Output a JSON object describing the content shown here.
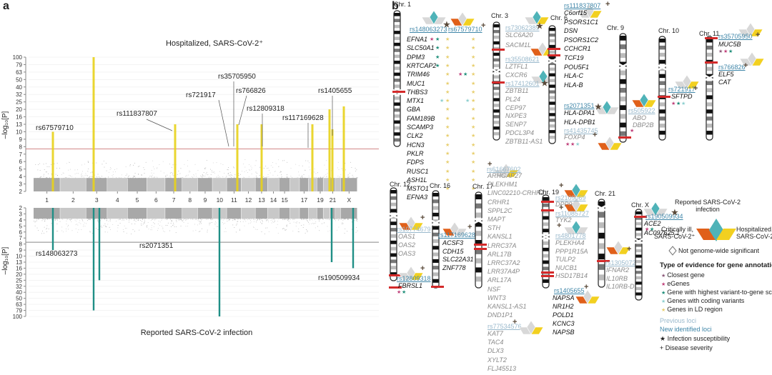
{
  "panel_a_letter": "a",
  "panel_b_letter": "b",
  "chart_data": [
    {
      "type": "scatter",
      "subtype": "miami_manhattan_top",
      "title": "Hospitalized, SARS-CoV-2⁺",
      "ylabel": "–log₁₀[P]",
      "yticks": [
        "2",
        "3",
        "4",
        "5",
        "6",
        "7",
        "8",
        "9",
        "10",
        "13",
        "16",
        "20",
        "25",
        "32",
        "40",
        "50",
        "63",
        "79",
        "100"
      ],
      "ylim": [
        2,
        100
      ],
      "significance_line": 7.7,
      "x_chromosomes": [
        "1",
        "2",
        "3",
        "4",
        "5",
        "6",
        "7",
        "8",
        "9",
        "10",
        "11",
        "12",
        "13",
        "14",
        "15",
        "17",
        "19",
        "21",
        "X"
      ],
      "highlight_color": "#e8d21a",
      "annotations": [
        {
          "label": "rs67579710",
          "chr": "1",
          "peak": 10
        },
        {
          "label": "rs111837807",
          "chr": "6",
          "peak": 13
        },
        {
          "label": "rs721917",
          "chr": "10",
          "peak": 8
        },
        {
          "label": "rs35705950",
          "chr": "11",
          "peak": 8
        },
        {
          "label": "rs766826",
          "chr": "11",
          "peak": 12
        },
        {
          "label": "rs12809318",
          "chr": "12",
          "peak": 13
        },
        {
          "label": "rs117169628",
          "chr": "17",
          "peak": 13
        },
        {
          "label": "rs1405655",
          "chr": "19",
          "peak": 11
        },
        {
          "label": "",
          "chr": "3",
          "peak": 100
        },
        {
          "label": "",
          "chr": "19",
          "peak": 20
        },
        {
          "label": "",
          "chr": "21",
          "peak": 20
        }
      ]
    },
    {
      "type": "scatter",
      "subtype": "miami_manhattan_bottom",
      "title": "Reported SARS-CoV-2 infection",
      "ylabel": "–log₁₀[P]",
      "yticks": [
        "2",
        "3",
        "4",
        "5",
        "6",
        "7",
        "8",
        "9",
        "10",
        "13",
        "16",
        "20",
        "25",
        "32",
        "40",
        "50",
        "63",
        "79",
        "100"
      ],
      "ylim": [
        2,
        100
      ],
      "significance_line": 7.7,
      "highlight_color": "#1f8f86",
      "annotations": [
        {
          "label": "rs148063273",
          "chr": "1",
          "peak": 9
        },
        {
          "label": "",
          "chr": "3a",
          "peak": 79
        },
        {
          "label": "",
          "chr": "3b",
          "peak": 25
        },
        {
          "label": "rs2071351",
          "chr": "6",
          "peak": 7
        },
        {
          "label": "",
          "chr": "9",
          "peak": 100
        },
        {
          "label": "",
          "chr": "19",
          "peak": 13
        },
        {
          "label": "rs190509934",
          "chr": "X",
          "peak": 16
        }
      ]
    }
  ],
  "chromosomes": {
    "chr1": {
      "label": "Chr. 1",
      "rs": [
        {
          "id": "rs148063273",
          "status": "new",
          "mark": "★"
        },
        {
          "id": "rs67579710",
          "status": "new",
          "mark": "+"
        }
      ],
      "genes": [
        "EFNA1",
        "SLC50A1",
        "DPM3",
        "KRTCAP2",
        "TRIM46",
        "MUC1",
        "THBS3",
        "MTX1",
        "GBA",
        "FAM189B",
        "SCAMP3",
        "CLK2",
        "HCN3",
        "PKLR",
        "FDPS",
        "RUSC1",
        "ASH1L",
        "MSTO1",
        "EFNA3"
      ]
    },
    "chr3": {
      "label": "Chr. 3",
      "rs": [
        {
          "id": "rs73062389",
          "status": "prev",
          "mark": "★"
        },
        {
          "id": "rs35508621",
          "status": "prev",
          "mark": "+"
        },
        {
          "id": "rs17412601",
          "status": "prev",
          "mark": "★"
        }
      ],
      "genes": [
        "SLC6A20",
        "SACM1L",
        "LZTFL1",
        "CXCR6",
        "ZBTB11",
        "PL24",
        "CEP97",
        "NXPE3",
        "SENP7",
        "PDCL3P4",
        "ZBTB11-AS1"
      ]
    },
    "chr6": {
      "label": "Chr. 6",
      "rs": [
        {
          "id": "rs111837807",
          "status": "new",
          "mark": "+"
        },
        {
          "id": "rs2071351",
          "status": "new",
          "mark": "★"
        },
        {
          "id": "rs41435745",
          "status": "prev",
          "mark": "+"
        }
      ],
      "genes": [
        "C6orf15",
        "PSORS1C1",
        "DSN",
        "PSORS1C2",
        "CCHCR1",
        "TCF19",
        "POU5F1",
        "HLA-C",
        "HLA-B",
        "HLA-DPA1",
        "HLA-DPB1",
        "FOXP4"
      ]
    },
    "chr9": {
      "label": "Chr. 9",
      "rs": [
        {
          "id": "rs505922",
          "status": "prev",
          "mark": "★"
        }
      ],
      "genes": [
        "ABO",
        "DBP2B"
      ]
    },
    "chr10": {
      "label": "Chr. 10",
      "rs": [
        {
          "id": "rs721917",
          "status": "new",
          "mark": "+"
        }
      ],
      "genes": [
        "SFTPD"
      ]
    },
    "chr11": {
      "label": "Chr. 11",
      "rs": [
        {
          "id": "rs35705950",
          "status": "new",
          "mark": "+"
        },
        {
          "id": "rs766826",
          "status": "new",
          "mark": "+"
        }
      ],
      "genes": [
        "MUC5B",
        "ELF5",
        "CAT"
      ]
    },
    "chr12": {
      "label": "Chr. 12",
      "rs": [
        {
          "id": "rs10774679",
          "status": "prev",
          "mark": "+"
        },
        {
          "id": "rs12809318",
          "status": "new",
          "mark": "+"
        }
      ],
      "genes": [
        "OAS1",
        "OAS2",
        "OAS3",
        "FBRSL1"
      ]
    },
    "chr16": {
      "label": "Chr. 16",
      "rs": [
        {
          "id": "rs117169628",
          "status": "new",
          "mark": "+"
        }
      ],
      "genes": [
        "ACSF3",
        "CDH15",
        "SLC22A31",
        "ZNF778"
      ]
    },
    "chr17": {
      "label": "Chr. 17",
      "rs": [
        {
          "id": "rs61667602",
          "status": "prev",
          "mark": "+"
        },
        {
          "id": "rs77534576",
          "status": "prev",
          "mark": "+"
        }
      ],
      "genes": [
        "ARHGAP27",
        "PLEKHM1",
        "LINC02210-CRHR1",
        "CRHR1",
        "SPPL2C",
        "MAPT",
        "STH",
        "KANSL1",
        "LRRC37A",
        "ARL17B",
        "LRRC37A2",
        "LRR37A4P",
        "ARL17A",
        "NSF",
        "WNT3",
        "KANSL1-AS1",
        "DND1P1",
        "KAT7",
        "TAC4",
        "DLX3",
        "XYLT2",
        "FLJ45513"
      ]
    },
    "chr19": {
      "label": "Chr. 19",
      "rs": [
        {
          "id": "rs2109069",
          "status": "prev",
          "mark": "+"
        },
        {
          "id": "rs11085727",
          "status": "prev",
          "mark": "+"
        },
        {
          "id": "rs4801778",
          "status": "prev",
          "mark": "+"
        },
        {
          "id": "rs1405655",
          "status": "new",
          "mark": "+"
        }
      ],
      "genes": [
        "DPP9",
        "TYK2",
        "PLEKHA4",
        "PPP1R15A",
        "TULP2",
        "NUCB1",
        "HSD17B14",
        "NAPSA",
        "NR1H2",
        "POLD1",
        "KCNC3",
        "NAPSB"
      ]
    },
    "chr21": {
      "label": "Chr. 21",
      "rs": [
        {
          "id": "rs13050728",
          "status": "prev",
          "mark": "+"
        }
      ],
      "genes": [
        "IFNAR2",
        "IL10RB",
        "IL10RB-DT"
      ]
    },
    "chrX": {
      "label": "Chr. X",
      "rs": [
        {
          "id": "rs190509934",
          "status": "new",
          "mark": "★"
        }
      ],
      "genes": [
        "ACE2",
        "AC097625.1"
      ]
    }
  },
  "legend": {
    "reported": "Reported SARS-CoV-2 infection",
    "reported_line1": "Reported SARS-CoV-2",
    "reported_line2": "infection",
    "critical_line1": "Critically ill,",
    "critical_line2": "SARS-CoV-2⁺",
    "hosp_line1": "Hospitalized,",
    "hosp_line2": "SARS-CoV-2⁺",
    "not_sig": "Not genome-wide significant",
    "evidence_title": "Type of evidence for gene annotation",
    "evidence": [
      {
        "label": "Closest gene",
        "color": "#8c5a7a"
      },
      {
        "label": "eGenes",
        "color": "#c0407a"
      },
      {
        "label": "Gene with highest variant-to-gene score",
        "color": "#1f8f7a"
      },
      {
        "label": "Genes with coding variants",
        "color": "#8fd0d0"
      },
      {
        "label": "Genes in LD region",
        "color": "#e8cf70"
      }
    ],
    "previous_loci": "Previous loci",
    "new_loci": "New identified loci",
    "infection_susceptibility": "★ Infection susceptibility",
    "disease_severity": "+ Disease severity"
  },
  "colors": {
    "critical": "#e0601a",
    "reported": "#4fb3b8",
    "hospitalized": "#f2d020",
    "not_sig": "#d8d8d8",
    "prev_loci": "#9ab9cc",
    "new_loci": "#3f86a8",
    "sig_line": "#888888"
  }
}
